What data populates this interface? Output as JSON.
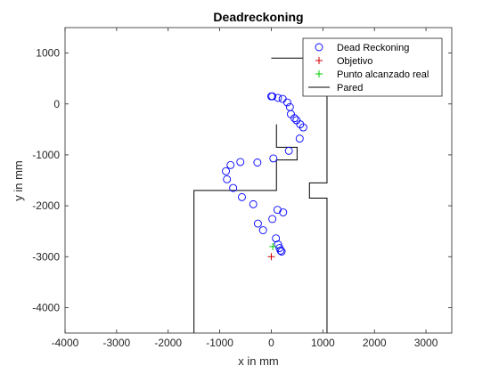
{
  "chart_data": {
    "type": "scatter",
    "title": "Deadreckoning",
    "xlabel": "x in mm",
    "ylabel": "y in mm",
    "xlim": [
      -4000,
      3500
    ],
    "ylim": [
      -4500,
      1500
    ],
    "xticks": [
      -4000,
      -3000,
      -2000,
      -1000,
      0,
      1000,
      2000,
      3000
    ],
    "yticks": [
      1000,
      0,
      -1000,
      -2000,
      -3000,
      -4000
    ],
    "grid": false,
    "legend_position": "top-right",
    "series": [
      {
        "name": "Dead Reckoning",
        "marker": "circle",
        "color": "#0000ff",
        "points": [
          [
            0,
            150
          ],
          [
            20,
            150
          ],
          [
            130,
            120
          ],
          [
            220,
            100
          ],
          [
            310,
            30
          ],
          [
            360,
            -60
          ],
          [
            380,
            -200
          ],
          [
            450,
            -280
          ],
          [
            490,
            -320
          ],
          [
            560,
            -400
          ],
          [
            620,
            -460
          ],
          [
            550,
            -680
          ],
          [
            340,
            -920
          ],
          [
            40,
            -1070
          ],
          [
            -270,
            -1150
          ],
          [
            -600,
            -1140
          ],
          [
            -790,
            -1200
          ],
          [
            -880,
            -1320
          ],
          [
            -860,
            -1480
          ],
          [
            -740,
            -1650
          ],
          [
            -570,
            -1830
          ],
          [
            -350,
            -1970
          ],
          [
            230,
            -2130
          ],
          [
            120,
            -2080
          ],
          [
            20,
            -2260
          ],
          [
            -260,
            -2350
          ],
          [
            -160,
            -2480
          ],
          [
            90,
            -2640
          ],
          [
            130,
            -2760
          ],
          [
            160,
            -2830
          ],
          [
            180,
            -2880
          ],
          [
            200,
            -2900
          ]
        ]
      },
      {
        "name": "Objetivo",
        "marker": "plus",
        "color": "#cc0000",
        "points": [
          [
            0,
            -3000
          ]
        ]
      },
      {
        "name": "Punto alcanzado real",
        "marker": "plus",
        "color": "#00cc00",
        "points": [
          [
            30,
            -2800
          ]
        ]
      },
      {
        "name": "Pared",
        "marker": "line",
        "color": "#000000",
        "paths": [
          [
            [
              0,
              900
            ],
            [
              1080,
              900
            ],
            [
              1080,
              -1550
            ],
            [
              740,
              -1550
            ],
            [
              740,
              -1850
            ],
            [
              1080,
              -1850
            ],
            [
              1080,
              -4500
            ]
          ],
          [
            [
              100,
              -400
            ],
            [
              100,
              -850
            ],
            [
              500,
              -850
            ],
            [
              500,
              -1100
            ],
            [
              100,
              -1100
            ],
            [
              100,
              -1700
            ],
            [
              -1500,
              -1700
            ],
            [
              -1500,
              -4500
            ]
          ]
        ]
      }
    ]
  }
}
